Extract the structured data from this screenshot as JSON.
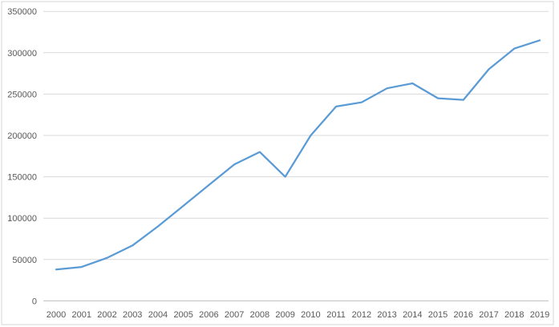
{
  "chart_data": {
    "type": "line",
    "title": "",
    "xlabel": "",
    "ylabel": "",
    "categories": [
      "2000",
      "2001",
      "2002",
      "2003",
      "2004",
      "2005",
      "2006",
      "2007",
      "2008",
      "2009",
      "2010",
      "2011",
      "2012",
      "2013",
      "2014",
      "2015",
      "2016",
      "2017",
      "2018",
      "2019"
    ],
    "series": [
      {
        "name": "",
        "values": [
          38000,
          41000,
          52000,
          67000,
          90000,
          115000,
          140000,
          165000,
          180000,
          150000,
          200000,
          235000,
          240000,
          257000,
          263000,
          245000,
          243000,
          280000,
          305000,
          315000
        ]
      }
    ],
    "ylim": [
      0,
      350000
    ],
    "yticks": [
      0,
      50000,
      100000,
      150000,
      200000,
      250000,
      300000,
      350000
    ],
    "ytick_labels": [
      "0",
      "50000",
      "100000",
      "150000",
      "200000",
      "250000",
      "300000",
      "350000"
    ],
    "grid": true,
    "legend": false,
    "colors": {
      "line": "#5B9BD5",
      "gridline": "#D9D9D9",
      "axis_line": "#BFBFBF",
      "tick_label": "#595959",
      "background": "#FFFFFF",
      "border": "#D4D4D4"
    }
  }
}
